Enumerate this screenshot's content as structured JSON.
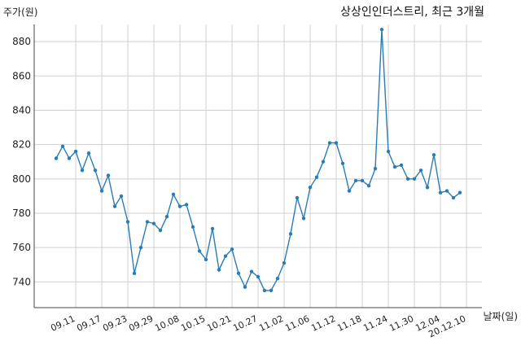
{
  "chart_data": {
    "type": "line",
    "title": "상상인인더스트리, 최근 3개월",
    "ylabel": "주가(원)",
    "xlabel": "날짜(일)",
    "ylim": [
      725,
      890
    ],
    "yticks": [
      740,
      760,
      780,
      800,
      820,
      840,
      860,
      880
    ],
    "xtick_labels": [
      "09.11",
      "09.17",
      "09.23",
      "09.29",
      "10.08",
      "10.15",
      "10.21",
      "10.27",
      "11.02",
      "11.06",
      "11.12",
      "11.18",
      "11.24",
      "11.30",
      "12.04",
      "20.12.10"
    ],
    "xtick_index": [
      3,
      7,
      11,
      15,
      19,
      23,
      27,
      31,
      35,
      39,
      43,
      47,
      51,
      55,
      59,
      63
    ],
    "grid": true,
    "color": "#2a7db4",
    "series": [
      {
        "values": [
          812,
          819,
          812,
          816,
          805,
          815,
          805,
          793,
          802,
          784,
          790,
          775,
          745,
          760,
          775,
          774,
          770,
          778,
          791,
          784,
          785,
          772,
          758,
          753,
          771,
          747,
          755,
          759,
          745,
          737,
          746,
          743,
          735,
          735,
          742,
          751,
          768,
          789,
          777,
          795,
          801,
          810,
          821,
          821,
          809,
          793,
          799,
          799,
          796,
          806,
          887,
          816,
          807,
          808,
          800,
          800,
          805,
          795,
          814,
          792,
          793,
          789,
          792
        ]
      }
    ]
  }
}
